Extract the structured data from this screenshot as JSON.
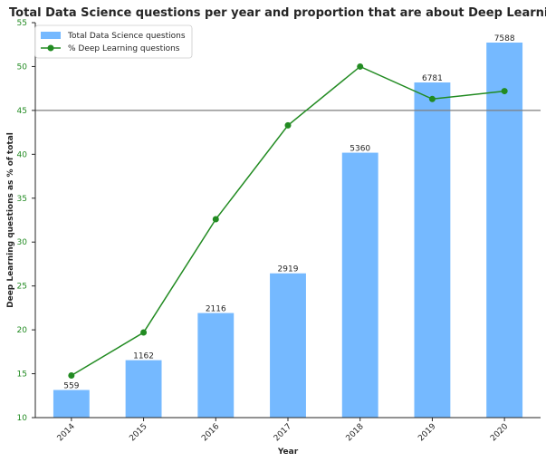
{
  "chart_data": {
    "type": "bar",
    "title": "Total Data Science questions per year and proportion that are about Deep Learning",
    "xlabel": "Year",
    "ylabel": "Deep Learning questions as % of total",
    "categories": [
      "2014",
      "2015",
      "2016",
      "2017",
      "2018",
      "2019",
      "2020"
    ],
    "series": [
      {
        "name": "Total Data Science questions",
        "type": "bar",
        "values": [
          559,
          1162,
          2116,
          2919,
          5360,
          6781,
          7588
        ],
        "labels": [
          "559",
          "1162",
          "2116",
          "2919",
          "5360",
          "6781",
          "7588"
        ],
        "color": "#75b9ff"
      },
      {
        "name": "% Deep Learning questions",
        "type": "line",
        "values": [
          14.8,
          19.7,
          32.6,
          43.3,
          50.0,
          46.3,
          47.2
        ],
        "color": "#228B22"
      }
    ],
    "secondary_axis_hidden_range": [
      0,
      7588
    ],
    "ylim": [
      10,
      55
    ],
    "yticks": [
      "10",
      "15",
      "20",
      "25",
      "30",
      "35",
      "40",
      "45",
      "50",
      "55"
    ],
    "reference_line": {
      "value": 45,
      "color": "#7f7f7f"
    },
    "legend_position": "top-left",
    "grid": false
  }
}
